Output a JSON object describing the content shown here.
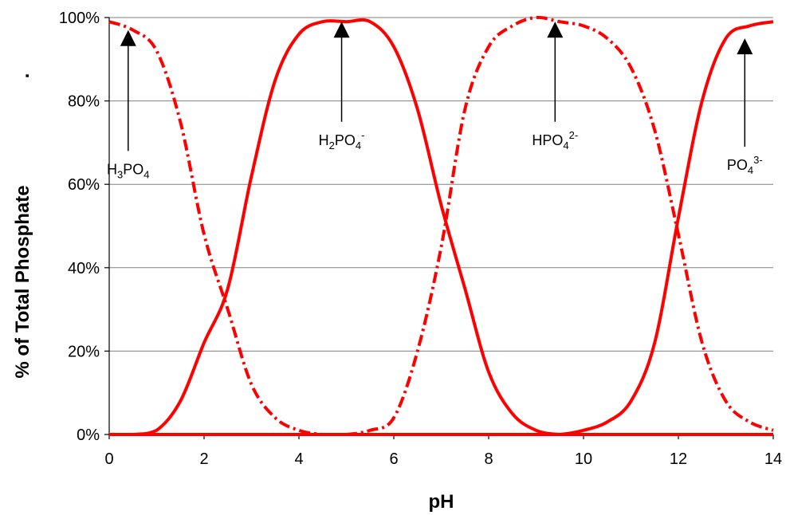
{
  "chart_data": {
    "type": "line",
    "title": "",
    "xlabel": "pH",
    "ylabel": "% of Total Phosphate",
    "ylabel_suffix": ".",
    "xlim": [
      0,
      14
    ],
    "ylim": [
      0,
      100
    ],
    "x_ticks": [
      "0",
      "2",
      "4",
      "6",
      "8",
      "10",
      "12",
      "14"
    ],
    "y_ticks": [
      "0%",
      "20%",
      "40%",
      "60%",
      "80%",
      "100%"
    ],
    "grid": {
      "horizontal": true,
      "vertical": false
    },
    "legend": "none",
    "x": [
      0,
      0.5,
      1,
      1.5,
      2,
      2.5,
      3,
      3.5,
      4,
      4.5,
      5,
      5.5,
      6,
      6.5,
      7,
      7.5,
      8,
      8.5,
      9,
      9.5,
      10,
      10.5,
      11,
      11.5,
      12,
      12.5,
      13,
      13.5,
      14
    ],
    "series": [
      {
        "key": "h3po4",
        "values": [
          99,
          97,
          92,
          75,
          48,
          30,
          12,
          4,
          1,
          0,
          0,
          0,
          0,
          0,
          0,
          0,
          0,
          0,
          0,
          0,
          0,
          0,
          0,
          0,
          0,
          0,
          0,
          0,
          0
        ],
        "color": "#ff0000",
        "style": "dashed"
      },
      {
        "key": "h2po4",
        "values": [
          0,
          0,
          1,
          8,
          22,
          35,
          62,
          85,
          96,
          99,
          99,
          99,
          93,
          78,
          55,
          35,
          15,
          5,
          1,
          0,
          0,
          0,
          0,
          0,
          0,
          0,
          0,
          0,
          0
        ],
        "color": "#ff0000",
        "style": "solid"
      },
      {
        "key": "hpo4",
        "values": [
          0,
          0,
          0,
          0,
          0,
          0,
          0,
          0,
          0,
          0,
          0,
          1,
          4,
          20,
          45,
          78,
          93,
          98,
          100,
          99,
          98,
          95,
          88,
          73,
          48,
          22,
          8,
          3,
          1
        ],
        "color": "#ff0000",
        "style": "dashed"
      },
      {
        "key": "po4",
        "values": [
          0,
          0,
          0,
          0,
          0,
          0,
          0,
          0,
          0,
          0,
          0,
          0,
          0,
          0,
          0,
          0,
          0,
          0,
          0,
          0,
          1,
          3,
          8,
          22,
          52,
          80,
          95,
          98,
          99
        ],
        "color": "#ff0000",
        "style": "solid"
      }
    ],
    "annotations": [
      {
        "base": "H",
        "sub1": "3",
        "mid": "PO",
        "sub2": "4",
        "sup": "",
        "arrow_x": 0.4,
        "arrow_tip_y": 97,
        "arrow_tail_y": 68
      },
      {
        "base": "H",
        "sub1": "2",
        "mid": "PO",
        "sub2": "4",
        "sup": "-",
        "arrow_x": 4.9,
        "arrow_tip_y": 99,
        "arrow_tail_y": 75
      },
      {
        "base": "",
        "sub1": "",
        "mid": "HPO",
        "sub2": "4",
        "sup": "2-",
        "arrow_x": 9.4,
        "arrow_tip_y": 99,
        "arrow_tail_y": 75
      },
      {
        "base": "",
        "sub1": "",
        "mid": "PO",
        "sub2": "4",
        "sup": "3-",
        "arrow_x": 13.4,
        "arrow_tip_y": 95,
        "arrow_tail_y": 69
      }
    ]
  }
}
